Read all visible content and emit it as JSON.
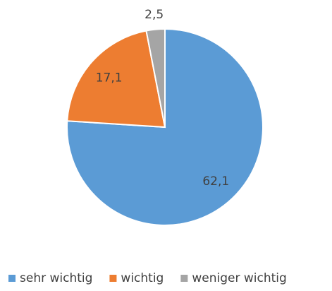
{
  "chart_data": {
    "type": "pie",
    "categories": [
      "sehr wichtig",
      "wichtig",
      "weniger wichtig"
    ],
    "values": [
      62.1,
      17.1,
      2.5
    ],
    "value_labels": [
      "62,1",
      "17,1",
      "2,5"
    ],
    "colors": [
      "#5b9bd5",
      "#ed7d31",
      "#a5a5a5"
    ],
    "legend": "bottom"
  }
}
